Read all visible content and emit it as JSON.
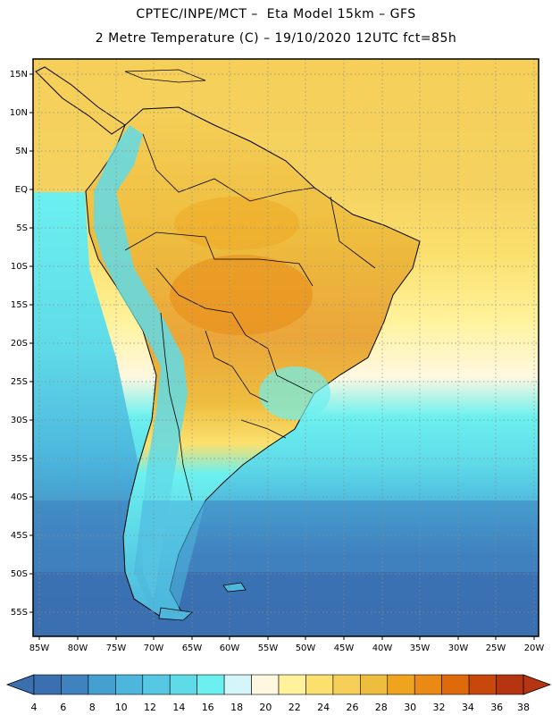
{
  "title_line1": "CPTEC/INPE/MCT –  Eta Model 15km – GFS",
  "title_line2": "2 Metre Temperature (C) – 19/10/2020 12UTC fct=85h",
  "lat_labels": [
    "15N",
    "10N",
    "5N",
    "EQ",
    "5S",
    "10S",
    "15S",
    "20S",
    "25S",
    "30S",
    "35S",
    "40S",
    "45S",
    "50S",
    "55S"
  ],
  "lon_labels": [
    "85W",
    "80W",
    "75W",
    "70W",
    "65W",
    "60W",
    "55W",
    "50W",
    "45W",
    "40W",
    "35W",
    "30W",
    "25W",
    "20W"
  ],
  "colorbar": {
    "ticks": [
      "4",
      "6",
      "8",
      "10",
      "12",
      "14",
      "16",
      "18",
      "20",
      "22",
      "24",
      "26",
      "28",
      "30",
      "32",
      "34",
      "36",
      "38"
    ],
    "colors": [
      "#3a6fb0",
      "#3f82bf",
      "#44a0d0",
      "#4cb6dd",
      "#56c8e3",
      "#5fdbe8",
      "#6cf0ef",
      "#d4f6fb",
      "#fff8e0",
      "#fff29a",
      "#fbe06e",
      "#f5cf58",
      "#eebd3e",
      "#f0a41e",
      "#ea8a14",
      "#de6a0c",
      "#c8470a",
      "#b53510"
    ]
  }
}
